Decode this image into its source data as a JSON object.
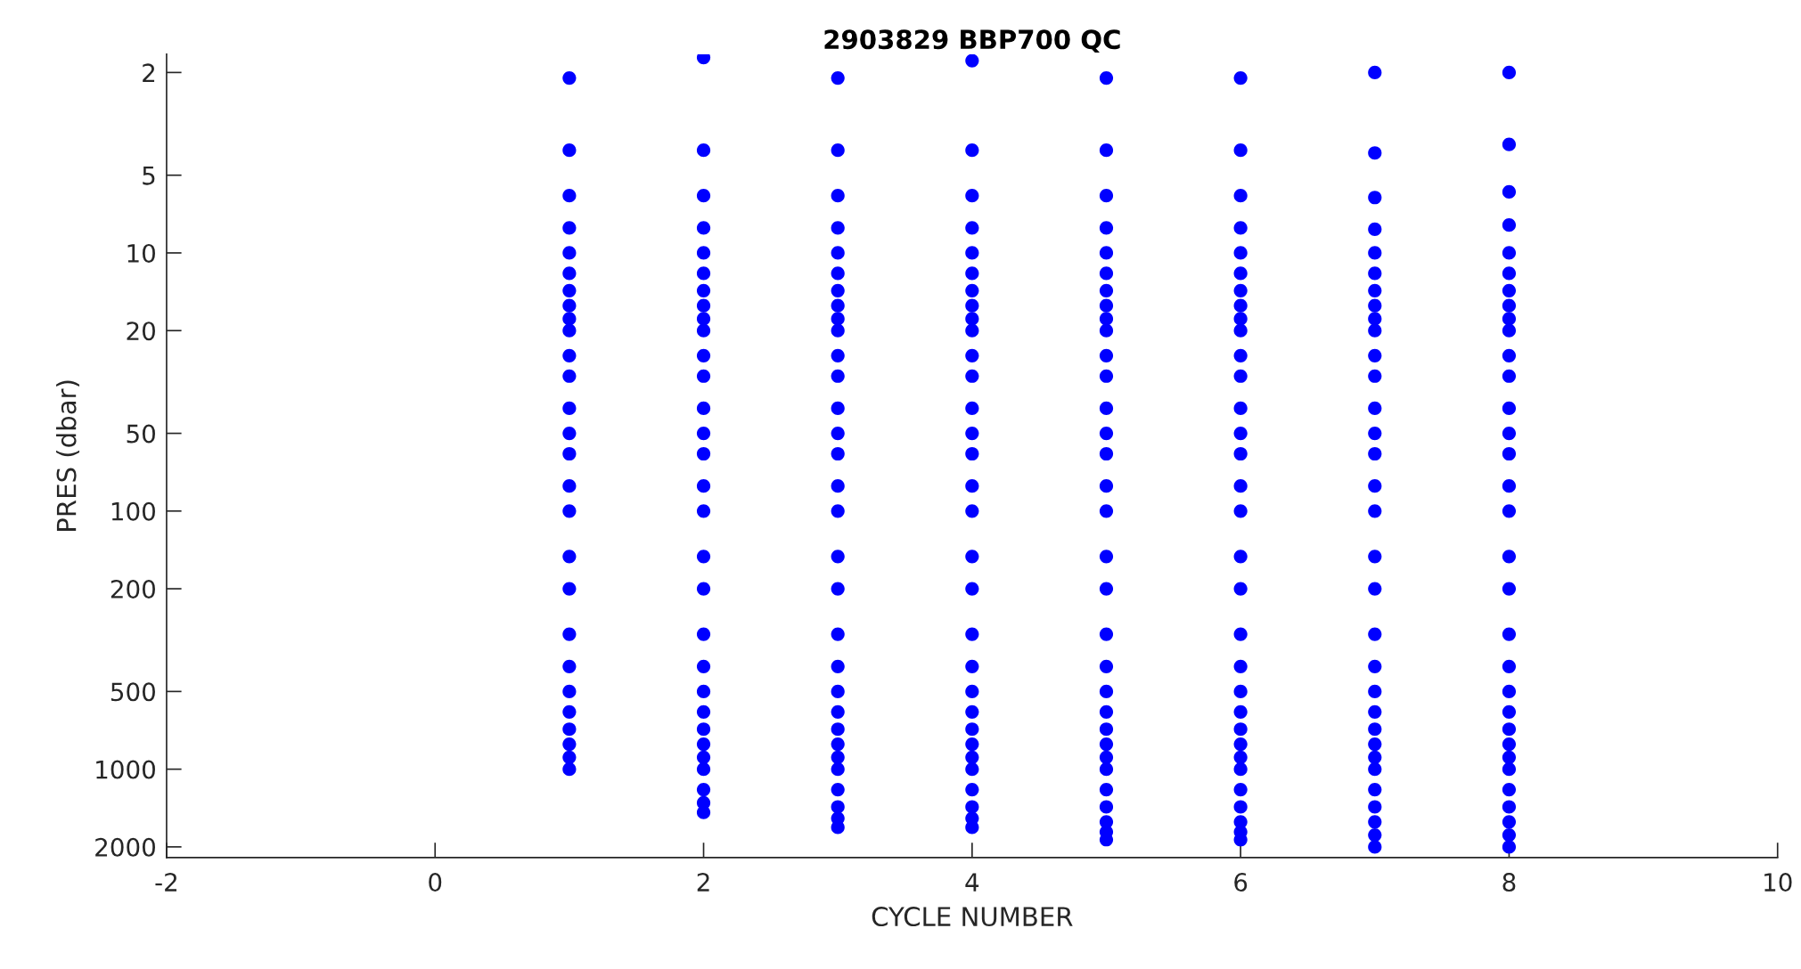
{
  "chart_data": {
    "type": "scatter",
    "title": "2903829 BBP700 QC",
    "xlabel": "CYCLE NUMBER",
    "ylabel": "PRES (dbar)",
    "xlim": [
      -2,
      10
    ],
    "xticks": [
      -2,
      0,
      2,
      4,
      6,
      8,
      10
    ],
    "ylim": [
      2200,
      1.7
    ],
    "log": true,
    "yticks": [
      2,
      5,
      10,
      20,
      50,
      100,
      200,
      500,
      1000,
      2000
    ],
    "marker": "circle",
    "grid": false,
    "series": [
      {
        "color": "#0000ff",
        "x": [
          1,
          1,
          1,
          1,
          1,
          1,
          1,
          1,
          1,
          1,
          1,
          1,
          1,
          1,
          1,
          1,
          1,
          1,
          1,
          1,
          1,
          1,
          1,
          1,
          1,
          1,
          1
        ],
        "values": [
          2.1,
          4,
          6,
          8,
          10,
          12,
          14,
          16,
          18,
          20,
          25,
          30,
          40,
          50,
          60,
          80,
          100,
          150,
          200,
          300,
          400,
          500,
          600,
          700,
          800,
          900,
          1000
        ]
      },
      {
        "color": "#0000ff",
        "x": [
          2,
          2,
          2,
          2,
          2,
          2,
          2,
          2,
          2,
          2,
          2,
          2,
          2,
          2,
          2,
          2,
          2,
          2,
          2,
          2,
          2,
          2,
          2,
          2,
          2,
          2,
          2,
          2,
          2,
          2
        ],
        "values": [
          1.75,
          4,
          6,
          8,
          10,
          12,
          14,
          16,
          18,
          20,
          25,
          30,
          40,
          50,
          60,
          80,
          100,
          150,
          200,
          300,
          400,
          500,
          600,
          700,
          800,
          900,
          1000,
          1200,
          1350,
          1470
        ]
      },
      {
        "color": "#0000ff",
        "x": [
          3,
          3,
          3,
          3,
          3,
          3,
          3,
          3,
          3,
          3,
          3,
          3,
          3,
          3,
          3,
          3,
          3,
          3,
          3,
          3,
          3,
          3,
          3,
          3,
          3,
          3,
          3,
          3,
          3,
          3,
          3
        ],
        "values": [
          2.1,
          4,
          6,
          8,
          10,
          12,
          14,
          16,
          18,
          20,
          25,
          30,
          40,
          50,
          60,
          80,
          100,
          150,
          200,
          300,
          400,
          500,
          600,
          700,
          800,
          900,
          1000,
          1200,
          1400,
          1550,
          1680
        ]
      },
      {
        "color": "#0000ff",
        "x": [
          4,
          4,
          4,
          4,
          4,
          4,
          4,
          4,
          4,
          4,
          4,
          4,
          4,
          4,
          4,
          4,
          4,
          4,
          4,
          4,
          4,
          4,
          4,
          4,
          4,
          4,
          4,
          4,
          4,
          4,
          4
        ],
        "values": [
          1.8,
          4,
          6,
          8,
          10,
          12,
          14,
          16,
          18,
          20,
          25,
          30,
          40,
          50,
          60,
          80,
          100,
          150,
          200,
          300,
          400,
          500,
          600,
          700,
          800,
          900,
          1000,
          1200,
          1400,
          1550,
          1680
        ]
      },
      {
        "color": "#0000ff",
        "x": [
          5,
          5,
          5,
          5,
          5,
          5,
          5,
          5,
          5,
          5,
          5,
          5,
          5,
          5,
          5,
          5,
          5,
          5,
          5,
          5,
          5,
          5,
          5,
          5,
          5,
          5,
          5,
          5,
          5,
          5,
          5,
          5
        ],
        "values": [
          2.1,
          4,
          6,
          8,
          10,
          12,
          14,
          16,
          18,
          20,
          25,
          30,
          40,
          50,
          60,
          80,
          100,
          150,
          200,
          300,
          400,
          500,
          600,
          700,
          800,
          900,
          1000,
          1200,
          1400,
          1600,
          1750,
          1875
        ]
      },
      {
        "color": "#0000ff",
        "x": [
          6,
          6,
          6,
          6,
          6,
          6,
          6,
          6,
          6,
          6,
          6,
          6,
          6,
          6,
          6,
          6,
          6,
          6,
          6,
          6,
          6,
          6,
          6,
          6,
          6,
          6,
          6,
          6,
          6,
          6,
          6,
          6
        ],
        "values": [
          2.1,
          4,
          6,
          8,
          10,
          12,
          14,
          16,
          18,
          20,
          25,
          30,
          40,
          50,
          60,
          80,
          100,
          150,
          200,
          300,
          400,
          500,
          600,
          700,
          800,
          900,
          1000,
          1200,
          1400,
          1600,
          1750,
          1875
        ]
      },
      {
        "color": "#0000ff",
        "x": [
          7,
          7,
          7,
          7,
          7,
          7,
          7,
          7,
          7,
          7,
          7,
          7,
          7,
          7,
          7,
          7,
          7,
          7,
          7,
          7,
          7,
          7,
          7,
          7,
          7,
          7,
          7,
          7,
          7,
          7,
          7,
          7
        ],
        "values": [
          2.0,
          4.1,
          6.1,
          8.1,
          10,
          12,
          14,
          16,
          18,
          20,
          25,
          30,
          40,
          50,
          60,
          80,
          100,
          150,
          200,
          300,
          400,
          500,
          600,
          700,
          800,
          900,
          1000,
          1200,
          1400,
          1600,
          1800,
          2000
        ]
      },
      {
        "color": "#0000ff",
        "x": [
          8,
          8,
          8,
          8,
          8,
          8,
          8,
          8,
          8,
          8,
          8,
          8,
          8,
          8,
          8,
          8,
          8,
          8,
          8,
          8,
          8,
          8,
          8,
          8,
          8,
          8,
          8,
          8,
          8,
          8,
          8,
          8
        ],
        "values": [
          2.0,
          3.8,
          5.8,
          7.8,
          10,
          12,
          14,
          16,
          18,
          20,
          25,
          30,
          40,
          50,
          60,
          80,
          100,
          150,
          200,
          300,
          400,
          500,
          600,
          700,
          800,
          900,
          1000,
          1200,
          1400,
          1600,
          1800,
          2000
        ]
      }
    ]
  }
}
